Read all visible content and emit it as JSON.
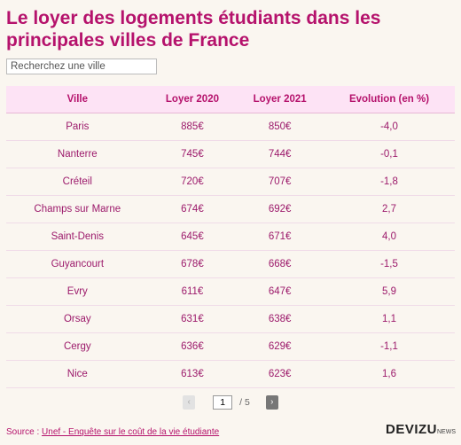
{
  "header": {
    "title": "Le loyer des logements étudiants dans les principales villes de France",
    "search_placeholder": "Recherchez une ville"
  },
  "table": {
    "columns": [
      "Ville",
      "Loyer 2020",
      "Loyer 2021",
      "Evolution (en %)"
    ],
    "rows": [
      [
        "Paris",
        "885€",
        "850€",
        "-4,0"
      ],
      [
        "Nanterre",
        "745€",
        "744€",
        "-0,1"
      ],
      [
        "Créteil",
        "720€",
        "707€",
        "-1,8"
      ],
      [
        "Champs sur Marne",
        "674€",
        "692€",
        "2,7"
      ],
      [
        "Saint-Denis",
        "645€",
        "671€",
        "4,0"
      ],
      [
        "Guyancourt",
        "678€",
        "668€",
        "-1,5"
      ],
      [
        "Evry",
        "611€",
        "647€",
        "5,9"
      ],
      [
        "Orsay",
        "631€",
        "638€",
        "1,1"
      ],
      [
        "Cergy",
        "636€",
        "629€",
        "-1,1"
      ],
      [
        "Nice",
        "613€",
        "623€",
        "1,6"
      ]
    ]
  },
  "pagination": {
    "page": "1",
    "total": "/ 5"
  },
  "footer": {
    "source_label": "Source :",
    "source_link": "Unef - Enquête sur le coût de la vie étudiante",
    "logo": "DEVIZU",
    "logo_suffix": "NEWS"
  }
}
